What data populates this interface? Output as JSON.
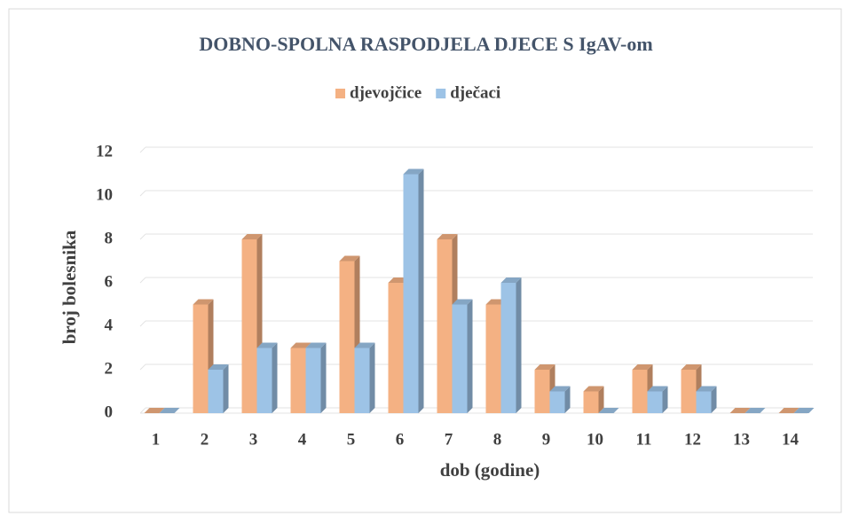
{
  "chart_data": {
    "type": "bar3d",
    "title": "DOBNO-SPOLNA RASPODJELA DJECE S IgAV-om",
    "x_label": "dob (godine)",
    "y_label": "broj bolesnika",
    "categories": [
      "1",
      "2",
      "3",
      "4",
      "5",
      "6",
      "7",
      "8",
      "9",
      "10",
      "11",
      "12",
      "13",
      "14"
    ],
    "series": [
      {
        "name": "djevojčice",
        "color": "#f4b183",
        "values": [
          0,
          5,
          8,
          3,
          7,
          6,
          8,
          5,
          2,
          1,
          2,
          2,
          0,
          0
        ]
      },
      {
        "name": "dječaci",
        "color": "#9dc3e6",
        "values": [
          0,
          2,
          3,
          3,
          3,
          11,
          5,
          6,
          1,
          0,
          1,
          1,
          0,
          0
        ]
      }
    ],
    "ylim": [
      0,
      12
    ],
    "yticks": [
      0,
      2,
      4,
      6,
      8,
      10,
      12
    ],
    "grid": true,
    "legend": "top"
  }
}
